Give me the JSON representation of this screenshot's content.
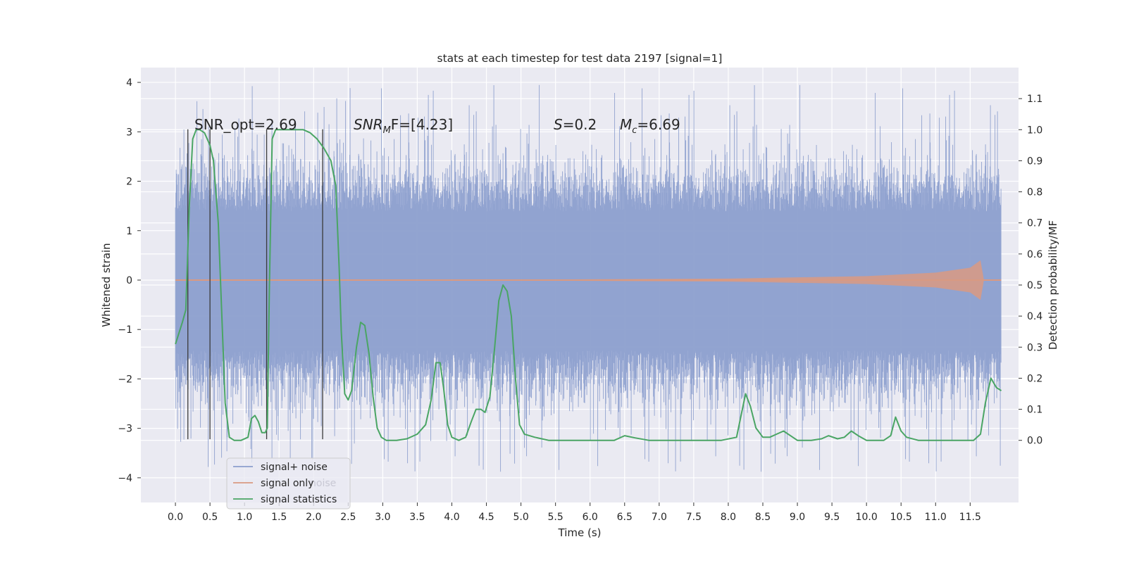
{
  "chart_data": {
    "type": "line",
    "title": "stats at each timestep for test data 2197 [signal=1]",
    "xlabel": "Time (s)",
    "ylabel_left": "Whitened strain",
    "ylabel_right": "Detection probability/MF",
    "xlim": [
      -0.5,
      12.2
    ],
    "ylim_left": [
      -4.5,
      4.3
    ],
    "ylim_right": [
      -0.2,
      1.2
    ],
    "xticks": [
      "0.0",
      "0.5",
      "1.0",
      "1.5",
      "2.0",
      "2.5",
      "3.0",
      "3.5",
      "4.0",
      "4.5",
      "5.0",
      "5.5",
      "6.0",
      "6.5",
      "7.0",
      "7.5",
      "8.0",
      "8.5",
      "9.0",
      "9.5",
      "10.0",
      "10.5",
      "11.0",
      "11.5"
    ],
    "yticks_left": [
      "4",
      "3",
      "2",
      "1",
      "0",
      "−1",
      "−2",
      "−3",
      "−4"
    ],
    "yticks_right": [
      "1.1",
      "1.0",
      "0.9",
      "0.8",
      "0.7",
      "0.6",
      "0.5",
      "0.4",
      "0.3",
      "0.2",
      "0.1",
      "0.0"
    ],
    "grid": true,
    "legend": {
      "placement": "lower-left",
      "entries": [
        "signal+ noise",
        "signal only",
        "signal statistics"
      ],
      "ghost_text": "noise"
    },
    "annotations": {
      "snr_opt": "SNR_opt=2.69",
      "snr_mf_base": "SNR",
      "snr_mf_sub": "M",
      "snr_mf_rest": "F=[4.23]",
      "s_base": "S",
      "s_rest": "=0.2",
      "mc_base": "M",
      "mc_sub": "c",
      "mc_rest": "=6.69"
    },
    "colors": {
      "signal_noise": "#8c9fce",
      "signal_only": "#d99a82",
      "statistics": "#4aa564",
      "vlines": "#3a3a3a",
      "axes_bg": "#eaeaf2",
      "grid": "#ffffff"
    },
    "series": [
      {
        "name": "signal+ noise",
        "axis": "left",
        "x_range": [
          0.0,
          11.95
        ],
        "noise_envelope": [
          -3.9,
          3.95
        ],
        "typical_band": [
          -1.9,
          1.85
        ]
      },
      {
        "name": "signal only",
        "axis": "left",
        "envelope_points": [
          [
            0.0,
            0.0
          ],
          [
            5.0,
            0.01
          ],
          [
            8.0,
            0.03
          ],
          [
            10.0,
            0.08
          ],
          [
            11.0,
            0.15
          ],
          [
            11.5,
            0.25
          ],
          [
            11.65,
            0.4
          ],
          [
            11.7,
            0.0
          ],
          [
            11.95,
            0.0
          ]
        ]
      },
      {
        "name": "signal statistics",
        "axis": "right",
        "points": [
          [
            0.0,
            0.31
          ],
          [
            0.1,
            0.38
          ],
          [
            0.15,
            0.42
          ],
          [
            0.2,
            0.75
          ],
          [
            0.25,
            0.97
          ],
          [
            0.3,
            1.0
          ],
          [
            0.35,
            1.0
          ],
          [
            0.42,
            0.99
          ],
          [
            0.5,
            0.95
          ],
          [
            0.55,
            0.9
          ],
          [
            0.62,
            0.7
          ],
          [
            0.68,
            0.35
          ],
          [
            0.72,
            0.12
          ],
          [
            0.78,
            0.01
          ],
          [
            0.85,
            0.0
          ],
          [
            0.95,
            0.0
          ],
          [
            1.05,
            0.01
          ],
          [
            1.1,
            0.07
          ],
          [
            1.15,
            0.08
          ],
          [
            1.2,
            0.06
          ],
          [
            1.25,
            0.025
          ],
          [
            1.3,
            0.025
          ],
          [
            1.33,
            0.04
          ],
          [
            1.36,
            0.5
          ],
          [
            1.4,
            0.97
          ],
          [
            1.45,
            1.0
          ],
          [
            1.55,
            1.0
          ],
          [
            1.7,
            1.0
          ],
          [
            1.85,
            1.0
          ],
          [
            1.95,
            0.99
          ],
          [
            2.05,
            0.97
          ],
          [
            2.15,
            0.94
          ],
          [
            2.25,
            0.9
          ],
          [
            2.32,
            0.82
          ],
          [
            2.37,
            0.55
          ],
          [
            2.4,
            0.35
          ],
          [
            2.45,
            0.15
          ],
          [
            2.5,
            0.13
          ],
          [
            2.55,
            0.16
          ],
          [
            2.62,
            0.3
          ],
          [
            2.68,
            0.38
          ],
          [
            2.74,
            0.37
          ],
          [
            2.8,
            0.28
          ],
          [
            2.86,
            0.14
          ],
          [
            2.92,
            0.04
          ],
          [
            2.98,
            0.01
          ],
          [
            3.05,
            0.0
          ],
          [
            3.2,
            0.0
          ],
          [
            3.35,
            0.005
          ],
          [
            3.5,
            0.02
          ],
          [
            3.62,
            0.05
          ],
          [
            3.7,
            0.13
          ],
          [
            3.77,
            0.25
          ],
          [
            3.83,
            0.25
          ],
          [
            3.88,
            0.17
          ],
          [
            3.94,
            0.05
          ],
          [
            4.0,
            0.01
          ],
          [
            4.1,
            0.0
          ],
          [
            4.2,
            0.01
          ],
          [
            4.28,
            0.06
          ],
          [
            4.35,
            0.1
          ],
          [
            4.42,
            0.1
          ],
          [
            4.48,
            0.09
          ],
          [
            4.55,
            0.14
          ],
          [
            4.62,
            0.3
          ],
          [
            4.68,
            0.45
          ],
          [
            4.74,
            0.5
          ],
          [
            4.8,
            0.48
          ],
          [
            4.86,
            0.4
          ],
          [
            4.92,
            0.2
          ],
          [
            4.98,
            0.05
          ],
          [
            5.05,
            0.02
          ],
          [
            5.2,
            0.01
          ],
          [
            5.4,
            0.0
          ],
          [
            6.0,
            0.0
          ],
          [
            6.35,
            0.0
          ],
          [
            6.5,
            0.015
          ],
          [
            6.65,
            0.008
          ],
          [
            6.85,
            0.0
          ],
          [
            7.5,
            0.0
          ],
          [
            7.9,
            0.0
          ],
          [
            8.12,
            0.01
          ],
          [
            8.25,
            0.15
          ],
          [
            8.32,
            0.11
          ],
          [
            8.4,
            0.04
          ],
          [
            8.5,
            0.01
          ],
          [
            8.6,
            0.01
          ],
          [
            8.7,
            0.02
          ],
          [
            8.8,
            0.03
          ],
          [
            8.9,
            0.015
          ],
          [
            9.0,
            0.0
          ],
          [
            9.2,
            0.0
          ],
          [
            9.35,
            0.005
          ],
          [
            9.45,
            0.015
          ],
          [
            9.58,
            0.005
          ],
          [
            9.68,
            0.01
          ],
          [
            9.78,
            0.03
          ],
          [
            9.88,
            0.015
          ],
          [
            10.0,
            0.0
          ],
          [
            10.25,
            0.0
          ],
          [
            10.35,
            0.015
          ],
          [
            10.42,
            0.075
          ],
          [
            10.5,
            0.03
          ],
          [
            10.58,
            0.01
          ],
          [
            10.75,
            0.0
          ],
          [
            11.2,
            0.0
          ],
          [
            11.55,
            0.0
          ],
          [
            11.65,
            0.02
          ],
          [
            11.72,
            0.12
          ],
          [
            11.8,
            0.2
          ],
          [
            11.88,
            0.17
          ],
          [
            11.95,
            0.16
          ]
        ]
      }
    ],
    "vlines_x": [
      0.18,
      0.5,
      1.32,
      2.13
    ],
    "vlines_range_left": [
      -3.22,
      3.05
    ]
  }
}
